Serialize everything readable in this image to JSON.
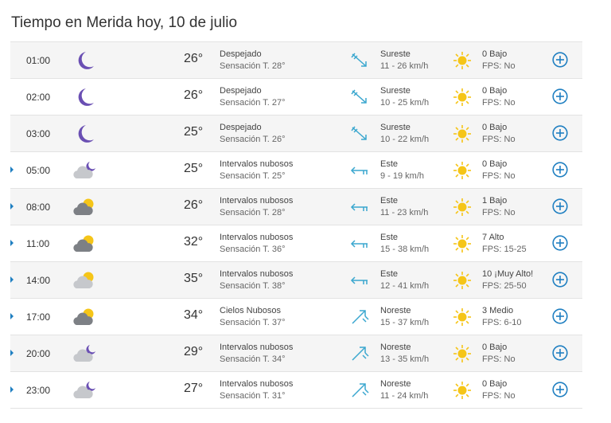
{
  "title": "Tiempo en Merida hoy, 10 de julio",
  "rows": [
    {
      "time": "01:00",
      "icon": "moon-icon",
      "temp": "26°",
      "desc": "Despejado",
      "feel": "Sensación T. 28°",
      "wind_dir": "Sureste",
      "wind_speed": "11 - 26 km/h",
      "wind_icon": "wind-southeast-icon",
      "uv": "0 Bajo",
      "fps": "FPS: No",
      "expandable": false
    },
    {
      "time": "02:00",
      "icon": "moon-icon",
      "temp": "26°",
      "desc": "Despejado",
      "feel": "Sensación T. 27°",
      "wind_dir": "Sureste",
      "wind_speed": "10 - 25 km/h",
      "wind_icon": "wind-southeast-icon",
      "uv": "0 Bajo",
      "fps": "FPS: No",
      "expandable": false
    },
    {
      "time": "03:00",
      "icon": "moon-icon",
      "temp": "25°",
      "desc": "Despejado",
      "feel": "Sensación T. 26°",
      "wind_dir": "Sureste",
      "wind_speed": "10 - 22 km/h",
      "wind_icon": "wind-southeast-icon",
      "uv": "0 Bajo",
      "fps": "FPS: No",
      "expandable": false
    },
    {
      "time": "05:00",
      "icon": "cloud-moon-icon",
      "temp": "25°",
      "desc": "Intervalos nubosos",
      "feel": "Sensación T. 25°",
      "wind_dir": "Este",
      "wind_speed": "9 - 19 km/h",
      "wind_icon": "wind-east-icon",
      "uv": "0 Bajo",
      "fps": "FPS: No",
      "expandable": true
    },
    {
      "time": "08:00",
      "icon": "cloud-sun-dark-icon",
      "temp": "26°",
      "desc": "Intervalos nubosos",
      "feel": "Sensación T. 28°",
      "wind_dir": "Este",
      "wind_speed": "11 - 23 km/h",
      "wind_icon": "wind-east-icon",
      "uv": "1 Bajo",
      "fps": "FPS: No",
      "expandable": true
    },
    {
      "time": "11:00",
      "icon": "cloud-sun-dark-icon",
      "temp": "32°",
      "desc": "Intervalos nubosos",
      "feel": "Sensación T. 36°",
      "wind_dir": "Este",
      "wind_speed": "15 - 38 km/h",
      "wind_icon": "wind-east-icon",
      "uv": "7 Alto",
      "fps": "FPS: 15-25",
      "expandable": true
    },
    {
      "time": "14:00",
      "icon": "cloud-sun-icon",
      "temp": "35°",
      "desc": "Intervalos nubosos",
      "feel": "Sensación T. 38°",
      "wind_dir": "Este",
      "wind_speed": "12 - 41 km/h",
      "wind_icon": "wind-east-icon",
      "uv": "10 ¡Muy Alto!",
      "fps": "FPS: 25-50",
      "expandable": true
    },
    {
      "time": "17:00",
      "icon": "cloud-sun-dark-icon",
      "temp": "34°",
      "desc": "Cielos Nubosos",
      "feel": "Sensación T. 37°",
      "wind_dir": "Noreste",
      "wind_speed": "15 - 37 km/h",
      "wind_icon": "wind-northeast-icon",
      "uv": "3 Medio",
      "fps": "FPS: 6-10",
      "expandable": true
    },
    {
      "time": "20:00",
      "icon": "cloud-moon-icon",
      "temp": "29°",
      "desc": "Intervalos nubosos",
      "feel": "Sensación T. 34°",
      "wind_dir": "Noreste",
      "wind_speed": "13 - 35 km/h",
      "wind_icon": "wind-northeast-icon",
      "uv": "0 Bajo",
      "fps": "FPS: No",
      "expandable": true
    },
    {
      "time": "23:00",
      "icon": "cloud-moon-icon",
      "temp": "27°",
      "desc": "Intervalos nubosos",
      "feel": "Sensación T. 31°",
      "wind_dir": "Noreste",
      "wind_speed": "11 - 24 km/h",
      "wind_icon": "wind-northeast-icon",
      "uv": "0 Bajo",
      "fps": "FPS: No",
      "expandable": true
    }
  ],
  "colors": {
    "accent": "#1f7fc1",
    "wind": "#3aa7cf",
    "moon": "#6a4fb3",
    "sun": "#f5c518",
    "cloud_light": "#c6c8cc",
    "cloud_dark": "#7d8085"
  }
}
